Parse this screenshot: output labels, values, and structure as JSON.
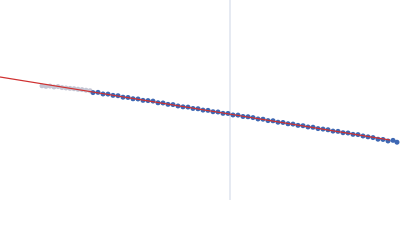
{
  "chart_data": {
    "type": "scatter",
    "xlim": [
      0,
      400
    ],
    "ylim": [
      0,
      200
    ],
    "series": [
      {
        "color": "#c4c6d4",
        "x": [
          42,
          46,
          50,
          54,
          58,
          62,
          66,
          70,
          74,
          78,
          82,
          86,
          90
        ],
        "values": [
          114.2,
          113.6,
          113.9,
          113.0,
          113.4,
          112.4,
          112.0,
          111.6,
          111.3,
          110.7,
          110.4,
          109.8,
          109.3
        ]
      },
      {
        "color": "#3d67b3",
        "x": [
          93,
          98,
          103,
          108,
          113,
          118,
          123,
          128,
          133,
          138,
          143,
          148,
          153,
          158,
          163,
          168,
          173,
          178,
          183,
          188,
          193,
          198,
          203,
          208,
          213,
          218,
          223,
          228,
          233,
          238,
          243,
          248,
          253,
          258,
          263,
          268,
          273,
          278,
          283,
          288,
          293,
          298,
          303,
          308,
          313,
          318,
          323,
          328,
          333,
          338,
          343,
          348,
          353,
          358,
          363,
          368,
          373,
          378,
          383,
          388,
          393,
          397
        ],
        "values": [
          107.4,
          107.6,
          106.0,
          105.9,
          104.6,
          104.3,
          102.8,
          102.5,
          101.2,
          101.0,
          99.6,
          99.4,
          98.9,
          97.2,
          97.0,
          95.6,
          95.4,
          94.0,
          93.1,
          92.9,
          91.5,
          91.2,
          89.9,
          89.6,
          88.3,
          88.0,
          86.6,
          86.5,
          85.0,
          84.9,
          83.5,
          83.2,
          82.4,
          81.0,
          80.8,
          79.4,
          79.2,
          77.8,
          77.5,
          76.2,
          75.9,
          74.6,
          74.3,
          73.0,
          72.7,
          71.4,
          70.9,
          70.2,
          68.9,
          68.6,
          67.3,
          67.0,
          65.6,
          65.4,
          64.0,
          63.1,
          62.4,
          60.8,
          60.5,
          59.0,
          59.6,
          57.8
        ]
      }
    ],
    "fit": {
      "color": "#cf3030",
      "x": [
        0,
        390
      ],
      "values": [
        123,
        60
      ]
    },
    "vline": {
      "color": "#ccd4e6",
      "x": 230
    }
  }
}
